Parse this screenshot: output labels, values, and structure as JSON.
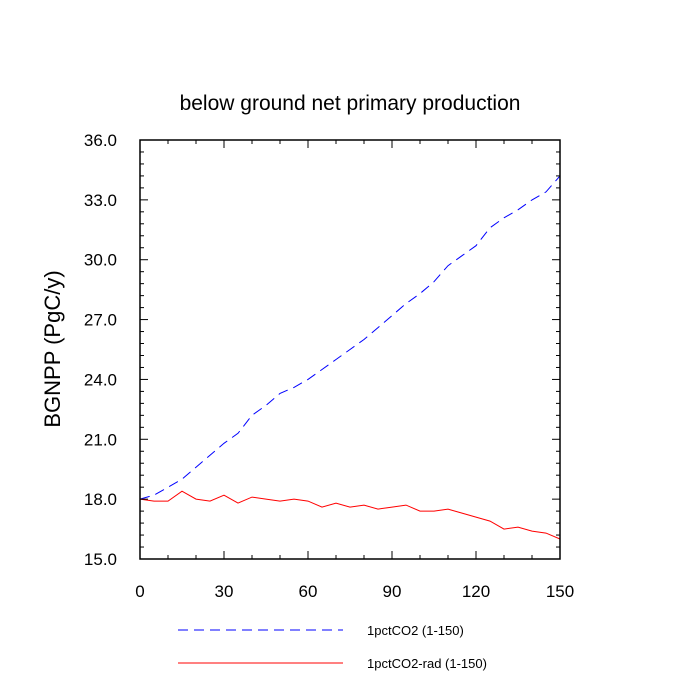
{
  "chart_data": {
    "type": "line",
    "title": "below ground net primary production",
    "xlabel": "",
    "ylabel": "BGNPP  (PgC/y)",
    "xlim": [
      0,
      150
    ],
    "ylim": [
      15.0,
      36.0
    ],
    "x_ticks": [
      0,
      30,
      60,
      90,
      120,
      150
    ],
    "x_tick_labels": [
      "0",
      "30",
      "60",
      "90",
      "120",
      "150"
    ],
    "y_ticks": [
      15.0,
      18.0,
      21.0,
      24.0,
      27.0,
      30.0,
      33.0,
      36.0
    ],
    "y_tick_labels": [
      "15.0",
      "18.0",
      "21.0",
      "24.0",
      "27.0",
      "30.0",
      "33.0",
      "36.0"
    ],
    "grid": false,
    "legend_position": "bottom",
    "series": [
      {
        "name": "1pctCO2 (1-150)",
        "color": "#0000ff",
        "style": "dashed",
        "x": [
          0,
          5,
          10,
          15,
          20,
          25,
          30,
          35,
          40,
          45,
          50,
          55,
          60,
          65,
          70,
          75,
          80,
          85,
          90,
          95,
          100,
          105,
          110,
          115,
          120,
          125,
          130,
          135,
          140,
          145,
          150
        ],
        "y": [
          18.0,
          18.2,
          18.6,
          19.0,
          19.6,
          20.2,
          20.8,
          21.3,
          22.2,
          22.7,
          23.3,
          23.6,
          24.0,
          24.5,
          25.0,
          25.5,
          26.0,
          26.6,
          27.2,
          27.8,
          28.3,
          28.9,
          29.7,
          30.2,
          30.7,
          31.6,
          32.1,
          32.5,
          33.0,
          33.4,
          34.2
        ]
      },
      {
        "name": "1pctCO2-rad (1-150)",
        "color": "#ff0000",
        "style": "solid",
        "x": [
          0,
          5,
          10,
          15,
          20,
          25,
          30,
          35,
          40,
          45,
          50,
          55,
          60,
          65,
          70,
          75,
          80,
          85,
          90,
          95,
          100,
          105,
          110,
          115,
          120,
          125,
          130,
          135,
          140,
          145,
          150
        ],
        "y": [
          18.0,
          17.9,
          17.9,
          18.4,
          18.0,
          17.9,
          18.2,
          17.8,
          18.1,
          18.0,
          17.9,
          18.0,
          17.9,
          17.6,
          17.8,
          17.6,
          17.7,
          17.5,
          17.6,
          17.7,
          17.4,
          17.4,
          17.5,
          17.3,
          17.1,
          16.9,
          16.5,
          16.6,
          16.4,
          16.3,
          16.0
        ]
      }
    ]
  }
}
